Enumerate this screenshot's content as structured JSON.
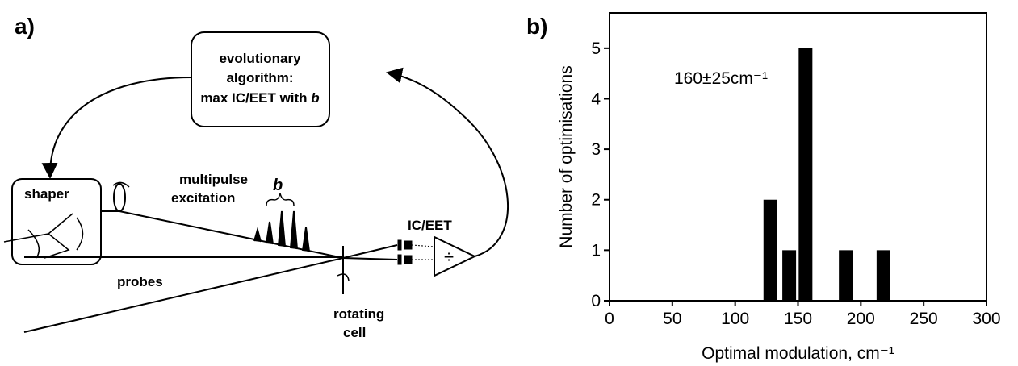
{
  "diagram": {
    "panel_label": "a)",
    "box_lines": [
      "evolutionary",
      "algorithm:",
      "max IC/EET with"
    ],
    "box_italic": "b",
    "shaper": "shaper",
    "excitation_lines": [
      "multipulse",
      "excitation"
    ],
    "pulse_label": "b",
    "detector_label": "IC/EET",
    "divider_symbol": "÷",
    "probes": "probes",
    "cell_lines": [
      "rotating",
      "cell"
    ]
  },
  "chart_data": {
    "type": "bar",
    "panel_label": "b)",
    "annotation": "160±25cm⁻¹",
    "x_label": "Optimal modulation, cm⁻¹",
    "y_label": "Number of optimisations",
    "x": [
      128,
      143,
      156,
      188,
      218
    ],
    "values": [
      2,
      1,
      5,
      1,
      1
    ],
    "color": "#000000",
    "xlim": [
      0,
      300
    ],
    "xticks": [
      0,
      50,
      100,
      150,
      200,
      250,
      300
    ],
    "ylim": [
      0,
      5.7
    ],
    "yticks": [
      0,
      1,
      2,
      3,
      4,
      5
    ]
  }
}
